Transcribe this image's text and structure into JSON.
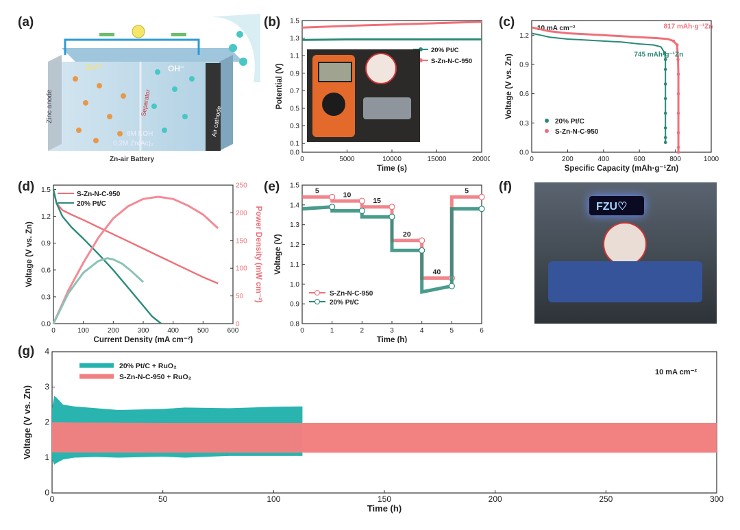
{
  "panel_labels": {
    "a": "(a)",
    "b": "(b)",
    "c": "(c)",
    "d": "(d)",
    "e": "(e)",
    "f": "(f)",
    "g": "(g)"
  },
  "colors": {
    "green": "#2a8a78",
    "pink": "#ee7078",
    "teal": "#25b3ad",
    "salmon": "#f27f80",
    "power_pink": "#f48a96",
    "power_green": "#8dc2b8"
  },
  "schematic": {
    "zn_ion": "Zn²⁺",
    "oh_ion": "OH⁻",
    "anode": "Zinc anode",
    "separator": "Separator",
    "cathode": "Air cathode",
    "electrolyte_1": "6M KOH",
    "electrolyte_2": "0.2M Zn(Ac)₂",
    "caption": "Zn-air Battery"
  },
  "photo_f": {
    "display_text": "FZU♡"
  },
  "chart_data": [
    {
      "id": "b",
      "type": "line",
      "xlabel": "Time (s)",
      "ylabel": "Potential (V)",
      "xlim": [
        0,
        20000
      ],
      "ylim": [
        0,
        1.5
      ],
      "xticks": [
        0,
        5000,
        10000,
        15000,
        20000
      ],
      "yticks": [
        0.0,
        0.1,
        0.3,
        0.5,
        0.7,
        0.9,
        1.1,
        1.3,
        1.5
      ],
      "legend": "upper-right",
      "series": [
        {
          "name": "20% Pt/C",
          "color": "#2a8a78",
          "x": [
            0,
            5000,
            10000,
            15000,
            20000
          ],
          "y": [
            1.28,
            1.285,
            1.285,
            1.285,
            1.285
          ]
        },
        {
          "name": "S-Zn-N-C-950",
          "color": "#ee7078",
          "x": [
            0,
            5000,
            10000,
            15000,
            20000
          ],
          "y": [
            1.42,
            1.44,
            1.455,
            1.47,
            1.485
          ]
        }
      ]
    },
    {
      "id": "c",
      "type": "scatter-line",
      "xlabel": "Specific Capacity (mAh·g⁻¹Zn)",
      "ylabel": "Voltage (V vs. Zn)",
      "xlim": [
        0,
        1000
      ],
      "ylim": [
        0,
        1.35
      ],
      "xticks": [
        0,
        200,
        400,
        600,
        800,
        1000
      ],
      "yticks": [
        0.0,
        0.3,
        0.6,
        0.9,
        1.2
      ],
      "annotation": "10 mA cm⁻²",
      "labels": [
        {
          "text": "745 mAh·g⁻¹Zn"
        },
        {
          "text": "817 mAh·g⁻¹Zn"
        }
      ],
      "legend": "lower-left",
      "series": [
        {
          "name": "20% Pt/C",
          "color": "#2a8a78",
          "x": [
            0,
            50,
            100,
            200,
            300,
            400,
            500,
            600,
            680,
            720,
            740,
            745,
            745,
            745,
            745,
            745,
            745,
            745,
            745
          ],
          "y": [
            1.22,
            1.2,
            1.18,
            1.16,
            1.15,
            1.14,
            1.13,
            1.11,
            1.1,
            1.08,
            1.02,
            0.95,
            0.85,
            0.7,
            0.55,
            0.4,
            0.25,
            0.15,
            0.1
          ]
        },
        {
          "name": "S-Zn-N-C-950",
          "color": "#ee7078",
          "x": [
            0,
            50,
            100,
            200,
            300,
            400,
            500,
            600,
            700,
            760,
            790,
            810,
            815,
            817,
            817,
            817,
            817,
            817,
            817
          ],
          "y": [
            1.28,
            1.26,
            1.24,
            1.22,
            1.21,
            1.2,
            1.19,
            1.18,
            1.17,
            1.16,
            1.14,
            1.1,
            0.95,
            0.8,
            0.6,
            0.4,
            0.2,
            0.05,
            0.0
          ]
        }
      ]
    },
    {
      "id": "d",
      "type": "line",
      "xlabel": "Current Density (mA cm⁻²)",
      "ylabel": "Voltage (V vs. Zn)",
      "y2label": "Power Density (mW cm⁻²)",
      "xlim": [
        0,
        600
      ],
      "ylim": [
        0,
        1.55
      ],
      "y2lim": [
        0,
        250
      ],
      "xticks": [
        0,
        100,
        200,
        300,
        400,
        500,
        600
      ],
      "yticks": [
        0.0,
        0.3,
        0.6,
        0.9,
        1.2,
        1.5
      ],
      "y2ticks": [
        0,
        50,
        100,
        150,
        200,
        250
      ],
      "legend": "upper-left",
      "series": [
        {
          "name": "S-Zn-N-C-950",
          "color": "#ee7078",
          "axis": "left",
          "x": [
            0,
            10,
            30,
            60,
            100,
            150,
            200,
            250,
            300,
            350,
            400,
            450,
            500,
            550
          ],
          "y": [
            1.5,
            1.35,
            1.27,
            1.22,
            1.16,
            1.08,
            1.0,
            0.92,
            0.84,
            0.76,
            0.68,
            0.6,
            0.52,
            0.45
          ]
        },
        {
          "name": "20% Pt/C",
          "color": "#2a8a78",
          "axis": "left",
          "x": [
            0,
            10,
            30,
            60,
            100,
            150,
            200,
            250,
            300,
            330,
            360
          ],
          "y": [
            1.5,
            1.35,
            1.2,
            1.08,
            0.95,
            0.78,
            0.6,
            0.4,
            0.2,
            0.08,
            0.0
          ]
        },
        {
          "name": "S-Zn-N-C-950 power",
          "color": "#f48a96",
          "axis": "right",
          "x": [
            0,
            50,
            100,
            150,
            200,
            250,
            300,
            350,
            400,
            450,
            500,
            550
          ],
          "y": [
            0,
            60,
            110,
            155,
            190,
            212,
            225,
            229,
            225,
            213,
            197,
            172
          ]
        },
        {
          "name": "20% Pt/C power",
          "color": "#8dc2b8",
          "axis": "right",
          "x": [
            0,
            50,
            100,
            150,
            180,
            200,
            230,
            260,
            300
          ],
          "y": [
            0,
            55,
            92,
            113,
            118,
            116,
            108,
            95,
            75
          ]
        }
      ]
    },
    {
      "id": "e",
      "type": "line",
      "xlabel": "Time (h)",
      "ylabel": "Voltage (V)",
      "xlim": [
        0,
        6
      ],
      "ylim": [
        0.8,
        1.5
      ],
      "xticks": [
        0,
        1,
        2,
        3,
        4,
        5,
        6
      ],
      "yticks": [
        0.8,
        0.9,
        1.0,
        1.1,
        1.2,
        1.3,
        1.4,
        1.5
      ],
      "step_labels": [
        "5",
        "10",
        "15",
        "20",
        "40",
        "5"
      ],
      "legend": "lower-left",
      "series": [
        {
          "name": "S-Zn-N-C-950",
          "color": "#ee7078",
          "x": [
            0,
            1,
            1,
            2,
            2,
            3,
            3,
            4,
            4,
            5,
            5,
            6
          ],
          "y": [
            1.44,
            1.44,
            1.42,
            1.42,
            1.39,
            1.39,
            1.22,
            1.22,
            1.03,
            1.03,
            1.44,
            1.44
          ]
        },
        {
          "name": "20% Pt/C",
          "color": "#2a8a78",
          "x": [
            0,
            1,
            1,
            2,
            2,
            3,
            3,
            4,
            4,
            5,
            5,
            6
          ],
          "y": [
            1.38,
            1.39,
            1.37,
            1.37,
            1.34,
            1.34,
            1.17,
            1.17,
            0.96,
            0.99,
            1.38,
            1.38
          ]
        }
      ]
    },
    {
      "id": "g",
      "type": "area",
      "xlabel": "Time (h)",
      "ylabel": "Voltage (V vs. Zn)",
      "xlim": [
        0,
        300
      ],
      "ylim": [
        0,
        4
      ],
      "xticks": [
        0,
        50,
        100,
        150,
        200,
        250,
        300
      ],
      "yticks": [
        0,
        1,
        2,
        3,
        4
      ],
      "annotation": "10 mA cm⁻²",
      "legend": "upper-left",
      "series": [
        {
          "name": "20% Pt/C + RuO₂",
          "color": "#25b3ad",
          "x": [
            0,
            1,
            2,
            5,
            10,
            20,
            30,
            50,
            60,
            80,
            100,
            113
          ],
          "upper": [
            2.4,
            2.75,
            2.7,
            2.5,
            2.45,
            2.4,
            2.35,
            2.38,
            2.42,
            2.4,
            2.44,
            2.45
          ],
          "lower": [
            0.95,
            0.8,
            0.85,
            0.95,
            1.0,
            1.02,
            1.0,
            1.03,
            1.0,
            1.05,
            1.05,
            1.05
          ]
        },
        {
          "name": "S-Zn-N-C-950 + RuO₂",
          "color": "#f27f80",
          "x": [
            0,
            50,
            100,
            150,
            200,
            250,
            300
          ],
          "upper": [
            2.0,
            1.98,
            1.98,
            1.98,
            1.98,
            1.98,
            1.98
          ],
          "lower": [
            1.15,
            1.14,
            1.14,
            1.14,
            1.14,
            1.14,
            1.14
          ]
        }
      ]
    }
  ]
}
